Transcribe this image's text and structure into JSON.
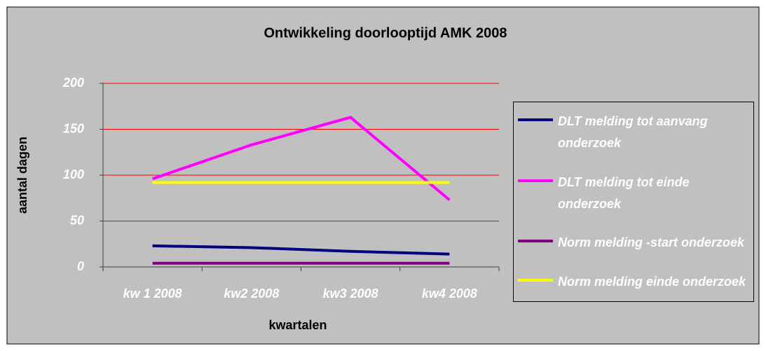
{
  "chart_data": {
    "type": "line",
    "title": "Ontwikkeling doorlooptijd AMK 2008",
    "x_label": "kwartalen",
    "y_label": "aantal dagen",
    "categories": [
      "kw 1 2008",
      "kw2 2008",
      "kw3 2008",
      "kw4 2008"
    ],
    "series": [
      {
        "name": "DLT melding tot aanvang onderzoek",
        "color": "#000080",
        "values": [
          23,
          21,
          17,
          14
        ]
      },
      {
        "name": "DLT melding tot einde onderzoek",
        "color": "#ff00ff",
        "values": [
          96,
          133,
          163,
          73
        ]
      },
      {
        "name": "Norm melding -start onderzoek",
        "color": "#800080",
        "values": [
          4,
          4,
          4,
          4
        ]
      },
      {
        "name": "Norm melding einde onderzoek",
        "color": "#ffff00",
        "values": [
          92,
          92,
          92,
          92
        ]
      }
    ],
    "ylim": [
      0,
      200
    ],
    "yticks": [
      0,
      50,
      100,
      150,
      200
    ],
    "grid": true,
    "grid_color": "#ff0000",
    "legend": "right"
  }
}
